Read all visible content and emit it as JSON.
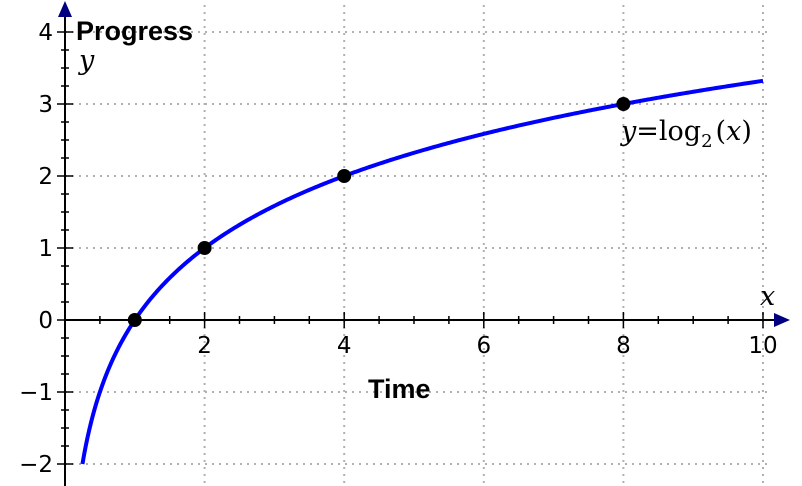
{
  "chart_data": {
    "type": "line",
    "title": "Progress",
    "xlabel": "Time",
    "x_axis_symbol": "x",
    "y_axis_symbol": "y",
    "xlim": [
      0,
      10
    ],
    "ylim": [
      -2.2,
      4
    ],
    "x_ticks": [
      2,
      4,
      6,
      8,
      10
    ],
    "x_tick_labels": [
      "2",
      "4",
      "6",
      "8",
      "10"
    ],
    "y_ticks": [
      -2,
      -1,
      0,
      1,
      2,
      3,
      4
    ],
    "y_tick_labels": [
      "−2",
      "−1",
      "0",
      "1",
      "2",
      "3",
      "4"
    ],
    "grid": true,
    "series": [
      {
        "function": "log2",
        "domain": [
          0.25,
          10
        ],
        "color": "#0000ff"
      }
    ],
    "points": [
      {
        "x": 1,
        "y": 0
      },
      {
        "x": 2,
        "y": 1
      },
      {
        "x": 4,
        "y": 2
      },
      {
        "x": 8,
        "y": 3
      }
    ],
    "point_color": "#000000",
    "annotation": {
      "prefix": "y",
      "equals": "=",
      "func": "log",
      "subscript": "2",
      "open": "(",
      "arg": "x",
      "close": ")"
    }
  }
}
